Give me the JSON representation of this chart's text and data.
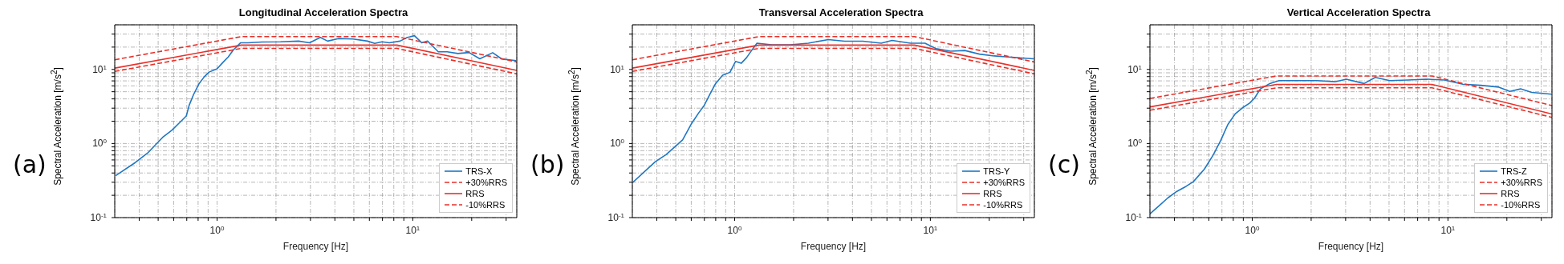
{
  "chart_data": [
    {
      "type": "line",
      "title": "Longitudinal Acceleration Spectra",
      "xlabel": "Frequency [Hz]",
      "ylabel": "Spectral Acceleration [m/s$^{2}$]",
      "annotations": [
        "(a)"
      ],
      "log": "xy",
      "grid": true,
      "legend": "bottom right",
      "marker": "none",
      "xlim": [
        0.3,
        34
      ],
      "ylim": [
        0.1,
        40
      ],
      "xticks": [
        {
          "value": 0.4,
          "label": null
        },
        {
          "value": 0.5,
          "label": null
        },
        {
          "value": 0.6,
          "label": null
        },
        {
          "value": 0.7,
          "label": null
        },
        {
          "value": 0.8,
          "label": null
        },
        {
          "value": 0.9,
          "label": null
        },
        {
          "value": 1,
          "label": "10$^{0}$"
        },
        {
          "value": 2,
          "label": null
        },
        {
          "value": 3,
          "label": null
        },
        {
          "value": 4,
          "label": null
        },
        {
          "value": 5,
          "label": null
        },
        {
          "value": 6,
          "label": null
        },
        {
          "value": 7,
          "label": null
        },
        {
          "value": 8,
          "label": null
        },
        {
          "value": 9,
          "label": null
        },
        {
          "value": 10,
          "label": "10$^{1}$"
        },
        {
          "value": 20,
          "label": null
        },
        {
          "value": 30,
          "label": null
        }
      ],
      "yticks": [
        {
          "value": 0.1,
          "label": "10$^{-1}$"
        },
        {
          "value": 0.2,
          "label": null
        },
        {
          "value": 0.3,
          "label": null
        },
        {
          "value": 0.4,
          "label": null
        },
        {
          "value": 0.5,
          "label": null
        },
        {
          "value": 0.6,
          "label": null
        },
        {
          "value": 0.7,
          "label": null
        },
        {
          "value": 0.8,
          "label": null
        },
        {
          "value": 0.9,
          "label": null
        },
        {
          "value": 1,
          "label": "10$^{0}$"
        },
        {
          "value": 2,
          "label": null
        },
        {
          "value": 3,
          "label": null
        },
        {
          "value": 4,
          "label": null
        },
        {
          "value": 5,
          "label": null
        },
        {
          "value": 6,
          "label": null
        },
        {
          "value": 7,
          "label": null
        },
        {
          "value": 8,
          "label": null
        },
        {
          "value": 9,
          "label": null
        },
        {
          "value": 10,
          "label": "10$^{1}$"
        },
        {
          "value": 20,
          "label": null
        },
        {
          "value": 30,
          "label": null
        }
      ],
      "series": [
        {
          "name": "TRS-X",
          "color": "#1f77c4",
          "line_style": "solid",
          "x": [
            0.303,
            0.383,
            0.445,
            0.527,
            0.587,
            0.639,
            0.696,
            0.72,
            0.758,
            0.808,
            0.861,
            0.91,
            1.0,
            1.07,
            1.14,
            1.21,
            1.32,
            1.44,
            1.7,
            2.11,
            2.61,
            2.97,
            3.37,
            3.67,
            4.17,
            4.95,
            5.87,
            6.39,
            6.96,
            7.59,
            8.61,
            9.38,
            10.2,
            11.1,
            11.9,
            13.5,
            15.0,
            17.0,
            19.4,
            22.0,
            25.6,
            28.4,
            33.7
          ],
          "values": [
            0.368,
            0.556,
            0.758,
            1.21,
            1.51,
            1.88,
            2.35,
            3.28,
            4.57,
            6.38,
            7.97,
            9.2,
            10.2,
            12.4,
            14.7,
            18.3,
            22.9,
            22.9,
            23.4,
            23.6,
            24.1,
            22.9,
            27.0,
            24.1,
            26.1,
            25.7,
            24.1,
            22.4,
            23.6,
            22.9,
            24.1,
            27.0,
            28.5,
            22.9,
            24.1,
            17.3,
            17.3,
            16.4,
            16.9,
            13.9,
            16.8,
            13.9,
            13.1
          ]
        },
        {
          "name": "+30%RRS",
          "color": "#e8312a",
          "line_style": "dashed",
          "x": [
            0.3,
            1.33,
            8.3,
            34
          ],
          "values": [
            13.5,
            27.7,
            27.7,
            12.6
          ]
        },
        {
          "name": "RRS",
          "color": "#e8312a",
          "line_style": "solid",
          "x": [
            0.3,
            1.33,
            8.3,
            34
          ],
          "values": [
            10.4,
            21.3,
            21.3,
            9.7
          ]
        },
        {
          "name": "-10%RRS",
          "color": "#e8312a",
          "line_style": "dashed",
          "x": [
            0.3,
            1.33,
            8.3,
            34
          ],
          "values": [
            9.4,
            19.2,
            19.2,
            8.7
          ]
        }
      ]
    },
    {
      "type": "line",
      "title": "Transversal Acceleration Spectra",
      "xlabel": "Frequency [Hz]",
      "ylabel": "Spectral Acceleration [m/s$^{2}$]",
      "annotations": [
        "(b)"
      ],
      "log": "xy",
      "grid": true,
      "legend": "bottom right",
      "marker": "none",
      "xlim": [
        0.3,
        34
      ],
      "ylim": [
        0.1,
        40
      ],
      "xticks": [
        {
          "value": 0.4,
          "label": null
        },
        {
          "value": 0.5,
          "label": null
        },
        {
          "value": 0.6,
          "label": null
        },
        {
          "value": 0.7,
          "label": null
        },
        {
          "value": 0.8,
          "label": null
        },
        {
          "value": 0.9,
          "label": null
        },
        {
          "value": 1,
          "label": "10$^{0}$"
        },
        {
          "value": 2,
          "label": null
        },
        {
          "value": 3,
          "label": null
        },
        {
          "value": 4,
          "label": null
        },
        {
          "value": 5,
          "label": null
        },
        {
          "value": 6,
          "label": null
        },
        {
          "value": 7,
          "label": null
        },
        {
          "value": 8,
          "label": null
        },
        {
          "value": 9,
          "label": null
        },
        {
          "value": 10,
          "label": "10$^{1}$"
        },
        {
          "value": 20,
          "label": null
        },
        {
          "value": 30,
          "label": null
        }
      ],
      "yticks": [
        {
          "value": 0.1,
          "label": "10$^{-1}$"
        },
        {
          "value": 0.2,
          "label": null
        },
        {
          "value": 0.3,
          "label": null
        },
        {
          "value": 0.4,
          "label": null
        },
        {
          "value": 0.5,
          "label": null
        },
        {
          "value": 0.6,
          "label": null
        },
        {
          "value": 0.7,
          "label": null
        },
        {
          "value": 0.8,
          "label": null
        },
        {
          "value": 0.9,
          "label": null
        },
        {
          "value": 1,
          "label": "10$^{0}$"
        },
        {
          "value": 2,
          "label": null
        },
        {
          "value": 3,
          "label": null
        },
        {
          "value": 4,
          "label": null
        },
        {
          "value": 5,
          "label": null
        },
        {
          "value": 6,
          "label": null
        },
        {
          "value": 7,
          "label": null
        },
        {
          "value": 8,
          "label": null
        },
        {
          "value": 9,
          "label": null
        },
        {
          "value": 10,
          "label": "10$^{1}$"
        },
        {
          "value": 20,
          "label": null
        },
        {
          "value": 30,
          "label": null
        }
      ],
      "series": [
        {
          "name": "TRS-Y",
          "color": "#1f77c4",
          "line_style": "solid",
          "x": [
            0.301,
            0.393,
            0.447,
            0.542,
            0.603,
            0.657,
            0.7,
            0.747,
            0.796,
            0.868,
            0.946,
            1.01,
            1.08,
            1.15,
            1.22,
            1.3,
            1.55,
            1.92,
            2.38,
            3.01,
            3.65,
            4.52,
            5.61,
            6.37,
            7.91,
            9.38,
            10.7,
            12.7,
            15.0,
            17.8,
            21.2,
            25.1,
            33.7
          ],
          "values": [
            0.297,
            0.567,
            0.711,
            1.12,
            1.87,
            2.62,
            3.29,
            4.62,
            6.35,
            8.34,
            9.14,
            12.8,
            12.1,
            14.4,
            18.0,
            22.6,
            21.4,
            21.4,
            22.6,
            25.3,
            24.0,
            24.0,
            22.6,
            24.6,
            22.6,
            22.6,
            19.1,
            17.6,
            18.0,
            16.1,
            15.2,
            14.7,
            13.9
          ]
        },
        {
          "name": "+30%RRS",
          "color": "#e8312a",
          "line_style": "dashed",
          "x": [
            0.3,
            1.33,
            8.3,
            34
          ],
          "values": [
            13.5,
            27.7,
            27.7,
            12.6
          ]
        },
        {
          "name": "RRS",
          "color": "#e8312a",
          "line_style": "solid",
          "x": [
            0.3,
            1.33,
            8.3,
            34
          ],
          "values": [
            10.4,
            21.3,
            21.3,
            9.7
          ]
        },
        {
          "name": "-10%RRS",
          "color": "#e8312a",
          "line_style": "dashed",
          "x": [
            0.3,
            1.33,
            8.3,
            34
          ],
          "values": [
            9.4,
            19.2,
            19.2,
            8.7
          ]
        }
      ]
    },
    {
      "type": "line",
      "title": "Vertical Acceleration Spectra",
      "xlabel": "Frequency [Hz]",
      "ylabel": "Spectral Acceleration [m/s$^{2}$]",
      "annotations": [
        "(c)"
      ],
      "log": "xy",
      "grid": true,
      "legend": "bottom right",
      "marker": "none",
      "xlim": [
        0.3,
        34
      ],
      "ylim": [
        0.1,
        40
      ],
      "xticks": [
        {
          "value": 0.4,
          "label": null
        },
        {
          "value": 0.5,
          "label": null
        },
        {
          "value": 0.6,
          "label": null
        },
        {
          "value": 0.7,
          "label": null
        },
        {
          "value": 0.8,
          "label": null
        },
        {
          "value": 0.9,
          "label": null
        },
        {
          "value": 1,
          "label": "10$^{0}$"
        },
        {
          "value": 2,
          "label": null
        },
        {
          "value": 3,
          "label": null
        },
        {
          "value": 4,
          "label": null
        },
        {
          "value": 5,
          "label": null
        },
        {
          "value": 6,
          "label": null
        },
        {
          "value": 7,
          "label": null
        },
        {
          "value": 8,
          "label": null
        },
        {
          "value": 9,
          "label": null
        },
        {
          "value": 10,
          "label": "10$^{1}$"
        },
        {
          "value": 20,
          "label": null
        },
        {
          "value": 30,
          "label": null
        }
      ],
      "yticks": [
        {
          "value": 0.1,
          "label": "10$^{-1}$"
        },
        {
          "value": 0.2,
          "label": null
        },
        {
          "value": 0.3,
          "label": null
        },
        {
          "value": 0.4,
          "label": null
        },
        {
          "value": 0.5,
          "label": null
        },
        {
          "value": 0.6,
          "label": null
        },
        {
          "value": 0.7,
          "label": null
        },
        {
          "value": 0.8,
          "label": null
        },
        {
          "value": 0.9,
          "label": null
        },
        {
          "value": 1,
          "label": "10$^{0}$"
        },
        {
          "value": 2,
          "label": null
        },
        {
          "value": 3,
          "label": null
        },
        {
          "value": 4,
          "label": null
        },
        {
          "value": 5,
          "label": null
        },
        {
          "value": 6,
          "label": null
        },
        {
          "value": 7,
          "label": null
        },
        {
          "value": 8,
          "label": null
        },
        {
          "value": 9,
          "label": null
        },
        {
          "value": 10,
          "label": "10$^{1}$"
        },
        {
          "value": 20,
          "label": null
        },
        {
          "value": 30,
          "label": null
        }
      ],
      "series": [
        {
          "name": "TRS-Z",
          "color": "#1f77c4",
          "line_style": "solid",
          "x": [
            0.3,
            0.371,
            0.412,
            0.459,
            0.5,
            0.569,
            0.632,
            0.689,
            0.75,
            0.818,
            0.891,
            0.97,
            1.03,
            1.1,
            1.23,
            1.37,
            1.73,
            2.14,
            2.65,
            3.02,
            3.73,
            4.25,
            5.04,
            6.25,
            7.73,
            9.58,
            11.9,
            14.7,
            18.2,
            20.7,
            23.5,
            26.8,
            33.9
          ],
          "values": [
            0.112,
            0.185,
            0.226,
            0.264,
            0.305,
            0.45,
            0.701,
            1.09,
            1.8,
            2.51,
            3.03,
            3.51,
            4.14,
            5.46,
            6.45,
            7.05,
            7.05,
            7.05,
            6.82,
            7.37,
            6.45,
            7.79,
            7.05,
            7.2,
            7.37,
            7.2,
            6.31,
            6.1,
            5.77,
            5.05,
            5.46,
            4.89,
            4.62
          ]
        },
        {
          "name": "+30%RRS",
          "color": "#e8312a",
          "line_style": "dashed",
          "x": [
            0.3,
            1.33,
            8.3,
            34
          ],
          "values": [
            4.06,
            8.16,
            8.16,
            3.25
          ]
        },
        {
          "name": "RRS",
          "color": "#e8312a",
          "line_style": "solid",
          "x": [
            0.3,
            1.33,
            8.3,
            34
          ],
          "values": [
            3.12,
            6.28,
            6.28,
            2.5
          ]
        },
        {
          "name": "-10%RRS",
          "color": "#e8312a",
          "line_style": "dashed",
          "x": [
            0.3,
            1.33,
            8.3,
            34
          ],
          "values": [
            2.81,
            5.65,
            5.65,
            2.25
          ]
        }
      ]
    }
  ]
}
